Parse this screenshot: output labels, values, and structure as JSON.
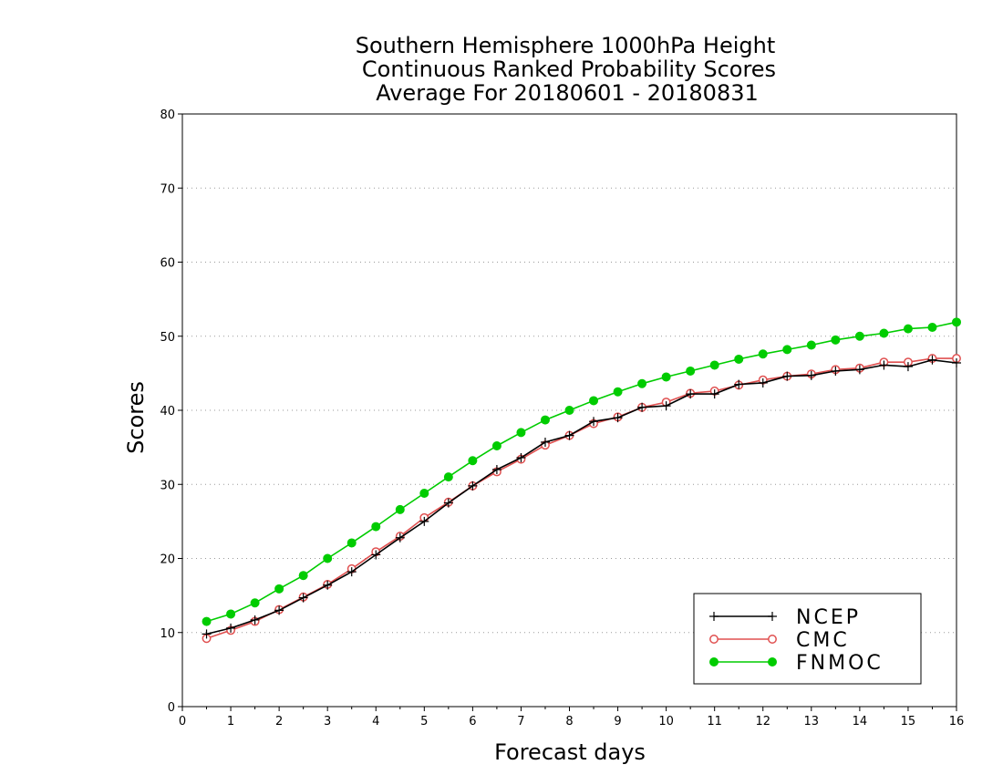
{
  "chart_data": {
    "type": "line",
    "title": [
      "Southern Hemisphere 1000hPa Height",
      "Continuous Ranked Probability Scores",
      "Average For 20180601 - 20180831"
    ],
    "xlabel": "Forecast days",
    "ylabel": "Scores",
    "xlim": [
      0,
      16
    ],
    "ylim": [
      0,
      80
    ],
    "xticks": [
      0,
      1,
      2,
      3,
      4,
      5,
      6,
      7,
      8,
      9,
      10,
      11,
      12,
      13,
      14,
      15,
      16
    ],
    "yticks": [
      0,
      10,
      20,
      30,
      40,
      50,
      60,
      70,
      80
    ],
    "grid": true,
    "legend_position": "bottom-right",
    "x": [
      0.5,
      1,
      1.5,
      2,
      2.5,
      3,
      3.5,
      4,
      4.5,
      5,
      5.5,
      6,
      6.5,
      7,
      7.5,
      8,
      8.5,
      9,
      9.5,
      10,
      10.5,
      11,
      11.5,
      12,
      12.5,
      13,
      13.5,
      14,
      14.5,
      15,
      15.5,
      16
    ],
    "series": [
      {
        "name": "NCEP",
        "color": "#000000",
        "marker": "plus",
        "values": [
          9.8,
          10.6,
          11.7,
          13.0,
          14.7,
          16.4,
          18.2,
          20.5,
          22.8,
          25.0,
          27.5,
          29.8,
          32.0,
          33.6,
          35.7,
          36.6,
          38.5,
          39.0,
          40.4,
          40.6,
          42.2,
          42.2,
          43.5,
          43.7,
          44.6,
          44.7,
          45.3,
          45.5,
          46.1,
          45.9,
          46.8,
          46.4
        ]
      },
      {
        "name": "CMC",
        "color": "#e05050",
        "marker": "open-circle",
        "values": [
          9.2,
          10.3,
          11.5,
          13.1,
          14.8,
          16.5,
          18.6,
          20.9,
          23.0,
          25.5,
          27.6,
          29.8,
          31.7,
          33.4,
          35.3,
          36.6,
          38.2,
          39.1,
          40.4,
          41.1,
          42.3,
          42.6,
          43.4,
          44.1,
          44.6,
          44.9,
          45.5,
          45.7,
          46.5,
          46.5,
          47.0,
          47.0
        ]
      },
      {
        "name": "FNMOC",
        "color": "#00cc00",
        "marker": "filled-circle",
        "values": [
          11.5,
          12.5,
          14.0,
          15.9,
          17.7,
          20.0,
          22.1,
          24.3,
          26.6,
          28.8,
          31.0,
          33.2,
          35.2,
          37.0,
          38.7,
          40.0,
          41.3,
          42.5,
          43.6,
          44.5,
          45.3,
          46.1,
          46.9,
          47.6,
          48.2,
          48.8,
          49.5,
          50.0,
          50.4,
          51.0,
          51.2,
          51.9
        ]
      }
    ]
  }
}
